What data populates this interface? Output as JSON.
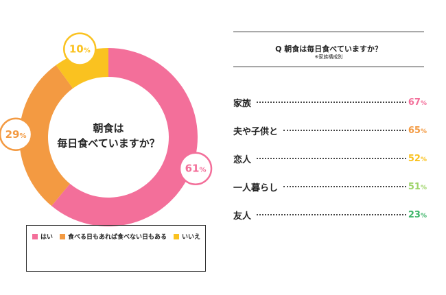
{
  "chart_data": [
    {
      "type": "pie",
      "title": "朝食は 毎日食べていますか？",
      "center_text": [
        "朝食は",
        "毎日食べていますか？"
      ],
      "slices": [
        {
          "label": "はい",
          "value": 61,
          "color": "#f36f9a"
        },
        {
          "label": "食べる日もあれば食べない日もある",
          "value": 29,
          "color": "#f39a42"
        },
        {
          "label": "いいえ",
          "value": 10,
          "color": "#fac220"
        }
      ],
      "unit": "%",
      "legend_position": "bottom"
    },
    {
      "type": "table",
      "title": "Q 朝食は毎日食べていますか？",
      "note": "※家族構成別",
      "rows": [
        {
          "label": "家族",
          "value": 67,
          "color": "#f36f9a"
        },
        {
          "label": "夫や子供と",
          "value": 65,
          "color": "#f39a42"
        },
        {
          "label": "恋人",
          "value": 52,
          "color": "#fac220"
        },
        {
          "label": "一人暮らし",
          "value": 51,
          "color": "#9fd46a"
        },
        {
          "label": "友人",
          "value": 23,
          "color": "#3fb56a"
        }
      ],
      "unit": "%"
    }
  ]
}
